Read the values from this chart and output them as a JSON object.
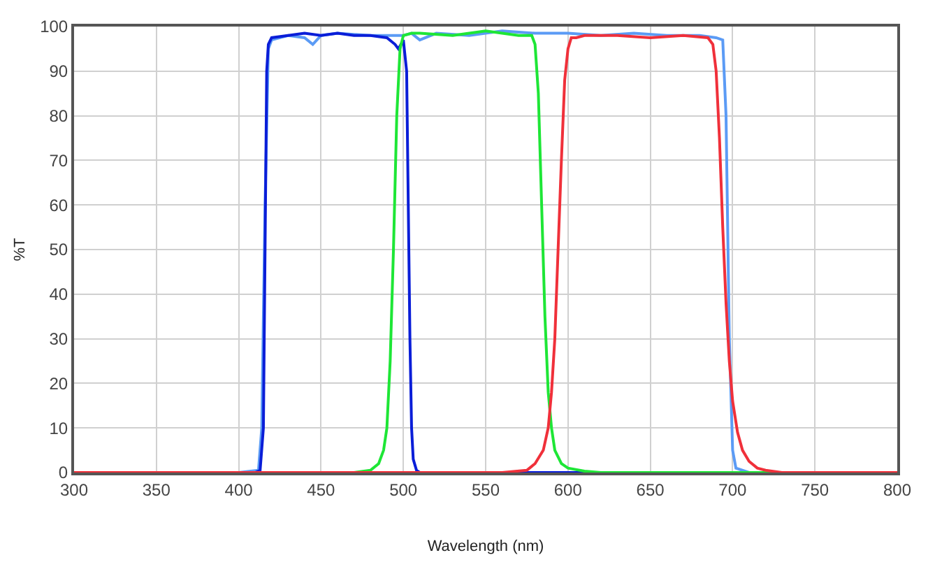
{
  "chart_data": {
    "type": "line",
    "xlabel": "Wavelength (nm)",
    "ylabel": "%T",
    "xlim": [
      300,
      800
    ],
    "ylim": [
      0,
      100
    ],
    "xticks": [
      300,
      350,
      400,
      450,
      500,
      550,
      600,
      650,
      700,
      750,
      800
    ],
    "yticks": [
      0,
      10,
      20,
      30,
      40,
      50,
      60,
      70,
      80,
      90,
      100
    ],
    "grid": true,
    "marker": "none",
    "line_style": "solid",
    "series": [
      {
        "color": "#5b9bf5",
        "x": [
          300,
          400,
          412,
          414,
          416,
          418,
          420,
          430,
          440,
          445,
          450,
          460,
          480,
          500,
          505,
          510,
          520,
          540,
          560,
          580,
          600,
          620,
          640,
          660,
          680,
          690,
          694,
          696,
          698,
          700,
          702,
          710,
          800
        ],
        "values": [
          0,
          0,
          0.5,
          10,
          60,
          95,
          97,
          98,
          97.5,
          96,
          98,
          98.5,
          98,
          98,
          98.5,
          97,
          98.5,
          98,
          99,
          98.5,
          98.5,
          98,
          98.5,
          98,
          98,
          97.5,
          97,
          80,
          30,
          5,
          1,
          0,
          0
        ]
      },
      {
        "color": "#0a1ed8",
        "x": [
          300,
          410,
          413,
          415,
          416,
          417,
          418,
          420,
          430,
          440,
          450,
          460,
          470,
          480,
          490,
          495,
          497,
          500,
          502,
          503,
          504,
          505,
          506,
          508,
          510,
          520,
          800
        ],
        "values": [
          0,
          0,
          0.5,
          10,
          50,
          90,
          96,
          97.5,
          98,
          98.5,
          98,
          98.5,
          98,
          98,
          97.5,
          96,
          95,
          97,
          90,
          60,
          30,
          10,
          3,
          0.5,
          0,
          0,
          0
        ]
      },
      {
        "color": "#1ee636",
        "x": [
          300,
          470,
          480,
          485,
          488,
          490,
          492,
          494,
          496,
          498,
          500,
          505,
          510,
          530,
          550,
          570,
          578,
          580,
          582,
          584,
          586,
          588,
          590,
          592,
          596,
          600,
          610,
          620,
          800
        ],
        "values": [
          0,
          0,
          0.5,
          2,
          5,
          10,
          25,
          50,
          80,
          95,
          98,
          98.5,
          98.5,
          98,
          99,
          98,
          98,
          96,
          85,
          60,
          35,
          18,
          10,
          5,
          2,
          1,
          0.3,
          0,
          0
        ]
      },
      {
        "color": "#f0303a",
        "x": [
          300,
          560,
          575,
          580,
          585,
          588,
          590,
          592,
          594,
          596,
          598,
          600,
          602,
          605,
          610,
          630,
          650,
          670,
          685,
          688,
          690,
          692,
          694,
          696,
          698,
          700,
          703,
          706,
          710,
          715,
          720,
          730,
          800
        ],
        "values": [
          0,
          0,
          0.5,
          2,
          5,
          10,
          18,
          30,
          50,
          70,
          88,
          95,
          97.5,
          97.5,
          98,
          98,
          97.5,
          98,
          97.5,
          96,
          90,
          75,
          55,
          38,
          25,
          16,
          9,
          5,
          2.5,
          1,
          0.5,
          0,
          0
        ]
      }
    ]
  }
}
